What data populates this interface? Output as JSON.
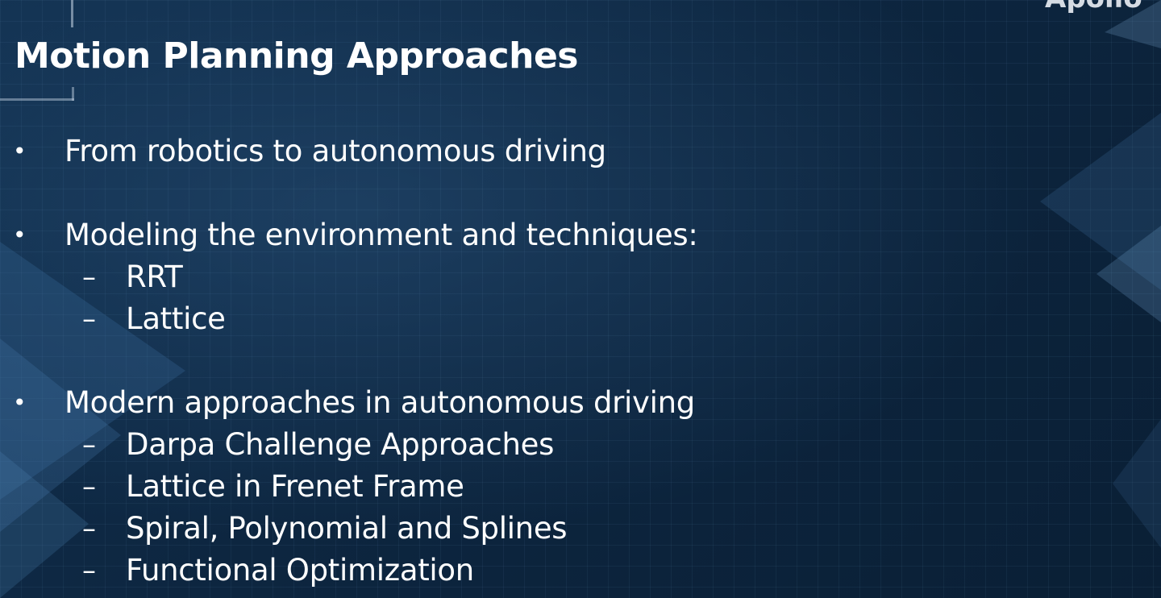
{
  "slide": {
    "corner_text": "Apollo",
    "title": "Motion Planning Approaches",
    "bullet_marker": "•",
    "sub_marker": "–",
    "bullets": [
      {
        "text": "From robotics to autonomous driving",
        "subitems": []
      },
      {
        "text": "Modeling the environment and techniques:",
        "subitems": [
          "RRT",
          "Lattice"
        ]
      },
      {
        "text": "Modern approaches in autonomous driving",
        "subitems": [
          "Darpa Challenge Approaches",
          "Lattice in Frenet Frame",
          "Spiral, Polynomial and Splines",
          "Functional Optimization"
        ]
      }
    ]
  },
  "theme": {
    "background": "#0c2238",
    "text_color": "#ffffff",
    "accent_triangle": "#2c5a86"
  }
}
